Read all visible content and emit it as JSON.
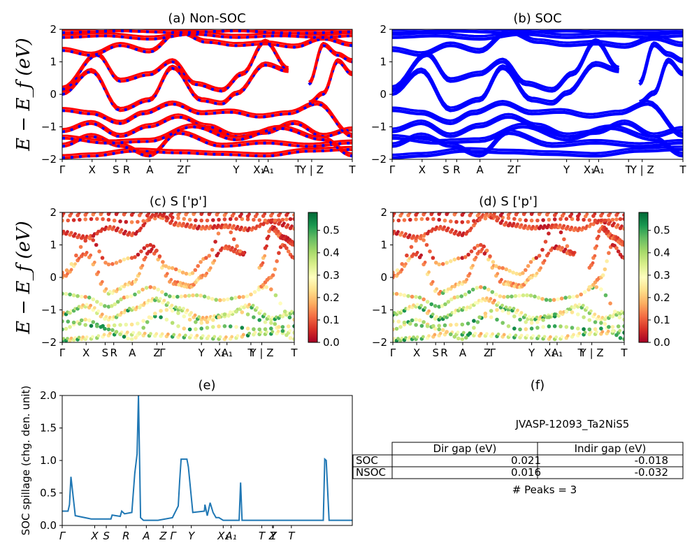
{
  "colors": {
    "nonsoc_a": "#ff0000",
    "nonsoc_b": "#0000ff",
    "soc": "#0000ff",
    "spillage": "#1f77b4"
  },
  "band_kpath": [
    "Γ",
    "X",
    "S",
    "R",
    "A",
    "Z",
    "Γ",
    "Y",
    "X₁",
    "A₁",
    "T",
    "Y | Z",
    "T"
  ],
  "spillage_kpath": [
    "Γ",
    "X",
    "S",
    "R",
    "A",
    "Z",
    "Γ",
    "Y",
    "X₁",
    "A₁",
    "T",
    "Y",
    "Z",
    "T"
  ],
  "energy_axis": {
    "label": "E − E_f (eV)",
    "ticks": [
      "−2",
      "−1",
      "0",
      "1",
      "2"
    ],
    "range": [
      -2,
      2
    ]
  },
  "colorbar": {
    "ticks": [
      "0.0",
      "0.1",
      "0.2",
      "0.3",
      "0.4",
      "0.5"
    ],
    "range": [
      0,
      0.58
    ],
    "colormap": "RdYlGn"
  },
  "panels": {
    "a": {
      "title": "(a) Non-SOC"
    },
    "b": {
      "title": "(b) SOC"
    },
    "c": {
      "title": "(c)  S ['p']"
    },
    "d": {
      "title": "(d) S ['p']"
    },
    "e": {
      "title": "(e)",
      "ylabel": "SOC spillage (chg. den. unit)",
      "yticks": [
        "0.0",
        "0.5",
        "1.0",
        "1.5",
        "2.0"
      ]
    },
    "f": {
      "title": "(f)"
    }
  },
  "info": {
    "material_id": "JVASP-12093_Ta2NiS5",
    "table": {
      "headers": [
        "",
        "Dir gap (eV)",
        "Indir gap (eV)"
      ],
      "rows": [
        [
          "SOC",
          "0.021",
          "-0.018"
        ],
        [
          "NSOC",
          "0.016",
          "-0.032"
        ]
      ]
    },
    "peaks": "# Peaks = 3"
  },
  "chart_data": [
    {
      "type": "line",
      "title": "(a) Non-SOC",
      "ylabel": "E − E_f (eV)",
      "ylim": [
        -2,
        2
      ],
      "x_ticks": [
        "Γ",
        "X",
        "S",
        "R",
        "A",
        "Z",
        "Γ",
        "Y",
        "X₁",
        "A₁",
        "T",
        "Y | Z",
        "T"
      ]
    },
    {
      "type": "line",
      "title": "(b) SOC",
      "ylim": [
        -2,
        2
      ],
      "x_ticks": [
        "Γ",
        "X",
        "S",
        "R",
        "A",
        "Z",
        "Γ",
        "Y",
        "X₁",
        "A₁",
        "T",
        "Y | Z",
        "T"
      ]
    },
    {
      "type": "scatter",
      "title": "(c)  S ['p']",
      "ylabel": "E − E_f (eV)",
      "ylim": [
        -2,
        2
      ],
      "colorbar_range": [
        0,
        0.58
      ]
    },
    {
      "type": "scatter",
      "title": "(d) S ['p']",
      "ylim": [
        -2,
        2
      ],
      "colorbar_range": [
        0,
        0.58
      ]
    },
    {
      "type": "line",
      "title": "(e)",
      "ylabel": "SOC spillage (chg. den. unit)",
      "ylim": [
        0,
        2
      ],
      "x": [
        0,
        0.02,
        0.025,
        0.03,
        0.045,
        0.1,
        0.168,
        0.172,
        0.2,
        0.205,
        0.215,
        0.24,
        0.25,
        0.258,
        0.263,
        0.27,
        0.28,
        0.33,
        0.38,
        0.4,
        0.405,
        0.41,
        0.43,
        0.435,
        0.45,
        0.49,
        0.492,
        0.5,
        0.505,
        0.51,
        0.52,
        0.53,
        0.54,
        0.555,
        0.565,
        0.61,
        0.615,
        0.62,
        0.63,
        0.66,
        0.9,
        0.905,
        0.91,
        0.92,
        1.0
      ],
      "y": [
        0.22,
        0.22,
        0.32,
        0.75,
        0.15,
        0.1,
        0.1,
        0.16,
        0.14,
        0.22,
        0.18,
        0.2,
        0.8,
        1.1,
        2.0,
        0.12,
        0.08,
        0.08,
        0.12,
        0.3,
        0.7,
        1.02,
        1.02,
        0.9,
        0.2,
        0.22,
        0.32,
        0.15,
        0.25,
        0.35,
        0.2,
        0.12,
        0.12,
        0.08,
        0.08,
        0.08,
        0.66,
        0.08,
        0.08,
        0.08,
        0.08,
        1.02,
        1.0,
        0.08,
        0.08
      ]
    },
    {
      "type": "table",
      "title": "(f)",
      "caption": "JVASP-12093_Ta2NiS5",
      "columns": [
        "Dir gap (eV)",
        "Indir gap (eV)"
      ],
      "rows": [
        [
          "SOC",
          0.021,
          -0.018
        ],
        [
          "NSOC",
          0.016,
          -0.032
        ]
      ],
      "note": "# Peaks = 3"
    }
  ]
}
